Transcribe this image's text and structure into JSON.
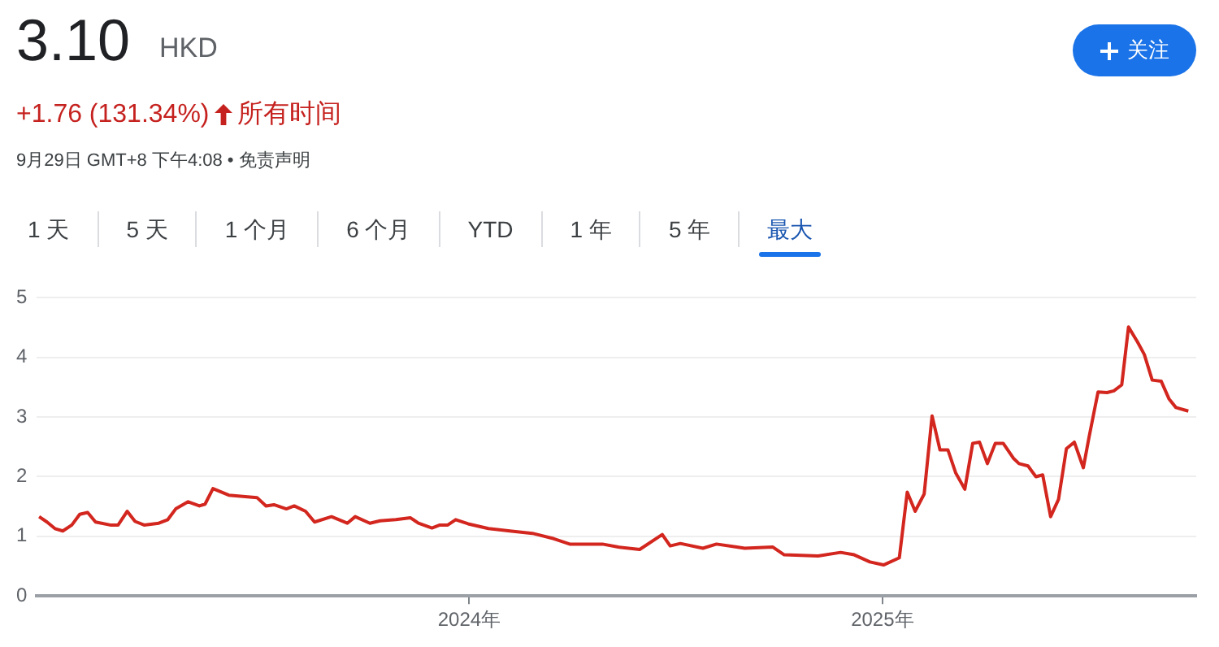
{
  "chart_data": {
    "type": "line",
    "title": "3.10",
    "subtitle": "HKD",
    "annotations": [
      "+1.76 (131.34%)",
      "所有时间",
      "9月29日 GMT+8 下午4:08 • 免责声明",
      "关注",
      "1 天",
      "5 天",
      "1 个月",
      "6 个月",
      "YTD",
      "1 年",
      "5 年",
      "最大"
    ],
    "xlim": [
      "2022-12-14",
      "2025-10-06"
    ],
    "xticks": [
      {
        "value": "2024-01-01",
        "label": "2024年"
      },
      {
        "value": "2025-01-01",
        "label": "2025年"
      }
    ],
    "ylim": [
      0,
      5
    ],
    "yticks": [
      0,
      1,
      2,
      3,
      4,
      5
    ],
    "grid": "y",
    "legend": false,
    "marker": "none",
    "line_style": "solid",
    "series": [
      {
        "color": "#d2261e",
        "x": [
          "2022-12-16",
          "2022-12-23",
          "2022-12-30",
          "2023-01-06",
          "2023-01-14",
          "2023-01-21",
          "2023-01-28",
          "2023-02-04",
          "2023-02-17",
          "2023-02-24",
          "2023-03-04",
          "2023-03-11",
          "2023-03-19",
          "2023-04-01",
          "2023-04-09",
          "2023-04-16",
          "2023-04-27",
          "2023-05-07",
          "2023-05-12",
          "2023-05-19",
          "2023-06-02",
          "2023-06-27",
          "2023-07-05",
          "2023-07-12",
          "2023-07-23",
          "2023-07-30",
          "2023-08-09",
          "2023-08-17",
          "2023-09-01",
          "2023-09-15",
          "2023-09-22",
          "2023-10-05",
          "2023-10-14",
          "2023-10-28",
          "2023-11-10",
          "2023-11-17",
          "2023-11-29",
          "2023-12-06",
          "2023-12-13",
          "2023-12-20",
          "2023-12-31",
          "2024-01-18",
          "2024-02-06",
          "2024-02-26",
          "2024-03-16",
          "2024-03-30",
          "2024-04-18",
          "2024-04-28",
          "2024-05-12",
          "2024-05-31",
          "2024-06-20",
          "2024-06-27",
          "2024-07-06",
          "2024-07-26",
          "2024-08-07",
          "2024-08-25",
          "2024-09-01",
          "2024-09-26",
          "2024-10-06",
          "2024-11-05",
          "2024-11-25",
          "2024-12-07",
          "2024-12-21",
          "2025-01-02",
          "2025-01-16",
          "2025-01-23",
          "2025-01-30",
          "2025-02-07",
          "2025-02-14",
          "2025-02-21",
          "2025-02-28",
          "2025-03-07",
          "2025-03-15",
          "2025-03-22",
          "2025-03-28",
          "2025-04-04",
          "2025-04-11",
          "2025-04-18",
          "2025-04-27",
          "2025-05-02",
          "2025-05-10",
          "2025-05-17",
          "2025-05-23",
          "2025-05-30",
          "2025-06-06",
          "2025-06-13",
          "2025-06-20",
          "2025-06-28",
          "2025-07-03",
          "2025-07-11",
          "2025-07-19",
          "2025-07-25",
          "2025-08-01",
          "2025-08-07",
          "2025-08-15",
          "2025-08-21",
          "2025-08-28",
          "2025-09-05",
          "2025-09-12",
          "2025-09-18",
          "2025-09-29"
        ],
        "values": [
          1.33,
          1.24,
          1.13,
          1.09,
          1.19,
          1.37,
          1.4,
          1.24,
          1.19,
          1.19,
          1.42,
          1.25,
          1.19,
          1.22,
          1.28,
          1.46,
          1.58,
          1.51,
          1.54,
          1.8,
          1.69,
          1.65,
          1.51,
          1.53,
          1.46,
          1.51,
          1.42,
          1.24,
          1.33,
          1.22,
          1.33,
          1.22,
          1.26,
          1.28,
          1.31,
          1.22,
          1.14,
          1.19,
          1.19,
          1.28,
          1.21,
          1.13,
          1.09,
          1.05,
          0.96,
          0.87,
          0.87,
          0.87,
          0.82,
          0.78,
          1.03,
          0.84,
          0.88,
          0.8,
          0.87,
          0.82,
          0.8,
          0.82,
          0.69,
          0.67,
          0.73,
          0.69,
          0.57,
          0.52,
          0.64,
          1.74,
          1.42,
          1.71,
          3.02,
          2.45,
          2.45,
          2.06,
          1.79,
          2.56,
          2.58,
          2.22,
          2.56,
          2.56,
          2.31,
          2.22,
          2.18,
          2.0,
          2.03,
          1.33,
          1.62,
          2.47,
          2.58,
          2.15,
          2.66,
          3.42,
          3.41,
          3.44,
          3.54,
          4.51,
          4.26,
          4.05,
          3.62,
          3.6,
          3.3,
          3.16,
          3.1
        ]
      }
    ]
  }
}
